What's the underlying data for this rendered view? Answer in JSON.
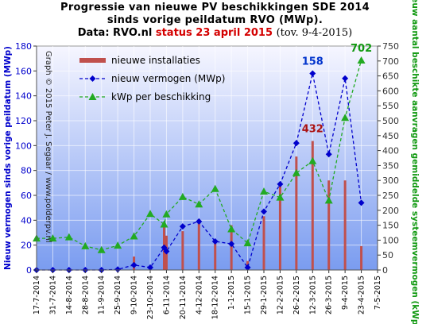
{
  "chart_data": {
    "type": "bar",
    "title_line1": "Progressie van nieuwe PV beschikkingen  SDE 2014",
    "title_line2": "sinds vorige peildatum RVO (MWp).",
    "title_line3_prefix": "Data: RVO.nl",
    "title_line3_status": "status 23 april 2015",
    "title_line3_note": "(tov. 9-4-2015)",
    "ylabel_left": "Nieuw vermogen sinds vorige peildatum (MWp)",
    "ylabel_right": "Nieuw aantal beschikte aanvragen gemiddelde systeemvermogen (kWp)",
    "watermark": "Graph © 2015 Peter J. Segaar / www.polderpv.nl",
    "ylim_left": [
      0,
      180
    ],
    "ylim_right": [
      0,
      750
    ],
    "yticks_left": [
      0,
      20,
      40,
      60,
      80,
      100,
      120,
      140,
      160,
      180
    ],
    "yticks_right": [
      0,
      50,
      100,
      150,
      200,
      250,
      300,
      350,
      400,
      450,
      500,
      550,
      600,
      650,
      700,
      750
    ],
    "xlim": [
      "2014-07-17",
      "2015-05-07"
    ],
    "x_tick_labels": [
      "17-7-2014",
      "31-7-2014",
      "14-8-2014",
      "28-8-2014",
      "11-9-2014",
      "25-9-2014",
      "9-10-2014",
      "23-10-2014",
      "6-11-2014",
      "20-11-2014",
      "4-12-2014",
      "18-12-2014",
      "1-1-2015",
      "15-1-2015",
      "29-1-2015",
      "12-2-2015",
      "26-2-2015",
      "12-3-2015",
      "26-3-2015",
      "9-4-2015",
      "23-4-2015",
      "7-5-2015"
    ],
    "grid": true,
    "legend_position": "top-left",
    "legend": [
      {
        "label": "nieuwe installaties",
        "color": "#c0504d",
        "kind": "bar"
      },
      {
        "label": "nieuw vermogen (MWp)",
        "color": "#0000cc",
        "kind": "line-diamond"
      },
      {
        "label": "kWp per beschikking",
        "color": "#22aa22",
        "kind": "line-triangle"
      }
    ],
    "series": [
      {
        "name": "nieuwe installaties",
        "axis": "right",
        "x": [
          "2014-07-17",
          "2014-07-24",
          "2014-07-31",
          "2014-08-14",
          "2014-08-28",
          "2014-09-11",
          "2014-09-25",
          "2014-10-09",
          "2014-10-23",
          "2014-11-04",
          "2014-11-06",
          "2014-11-20",
          "2014-12-04",
          "2014-12-18",
          "2015-01-01",
          "2015-01-15",
          "2015-01-29",
          "2015-02-12",
          "2015-02-26",
          "2015-03-12",
          "2015-03-26",
          "2015-04-09",
          "2015-04-23"
        ],
        "values": [
          0,
          0,
          0,
          0,
          0,
          0,
          2,
          45,
          3,
          150,
          115,
          130,
          170,
          90,
          150,
          30,
          180,
          285,
          380,
          432,
          300,
          300,
          80
        ]
      },
      {
        "name": "nieuw vermogen (MWp)",
        "axis": "left",
        "x": [
          "2014-07-17",
          "2014-07-31",
          "2014-08-14",
          "2014-08-28",
          "2014-09-11",
          "2014-09-25",
          "2014-10-09",
          "2014-10-23",
          "2014-11-04",
          "2014-11-06",
          "2014-11-20",
          "2014-12-04",
          "2014-12-18",
          "2015-01-01",
          "2015-01-15",
          "2015-01-29",
          "2015-02-12",
          "2015-02-26",
          "2015-03-12",
          "2015-03-26",
          "2015-04-09",
          "2015-04-23"
        ],
        "values": [
          0,
          0,
          0,
          0,
          0,
          0.5,
          4,
          2,
          18,
          15,
          35,
          39,
          23,
          21,
          2,
          47,
          69,
          102,
          158,
          93,
          154,
          54
        ]
      },
      {
        "name": "kWp per beschikking",
        "axis": "right",
        "x": [
          "2014-07-17",
          "2014-07-31",
          "2014-08-14",
          "2014-08-28",
          "2014-09-11",
          "2014-09-25",
          "2014-10-09",
          "2014-10-23",
          "2014-11-04",
          "2014-11-06",
          "2014-11-20",
          "2014-12-04",
          "2014-12-18",
          "2015-01-01",
          "2015-01-15",
          "2015-01-29",
          "2015-02-12",
          "2015-02-26",
          "2015-03-12",
          "2015-03-26",
          "2015-04-09",
          "2015-04-23"
        ],
        "values": [
          106,
          106,
          110,
          80,
          67,
          82,
          113,
          188,
          153,
          187,
          245,
          220,
          272,
          137,
          90,
          263,
          243,
          325,
          365,
          233,
          510,
          702
        ]
      }
    ],
    "annotations": [
      {
        "text": "158",
        "color": "#0033cc",
        "at_x": "2015-03-12",
        "axis": "left",
        "at_y": 158
      },
      {
        "text": "432",
        "color": "#aa1111",
        "at_x": "2015-03-12",
        "axis": "right",
        "at_y": 432
      },
      {
        "text": "702",
        "color": "#119911",
        "at_x": "2015-04-23",
        "axis": "right",
        "at_y": 702
      }
    ]
  },
  "colors": {
    "plot_top": "#f6f6ff",
    "plot_bottom": "#7a9cf0",
    "left_axis": "#0000cc",
    "right_axis": "#119911",
    "bar": "#c0504d"
  }
}
